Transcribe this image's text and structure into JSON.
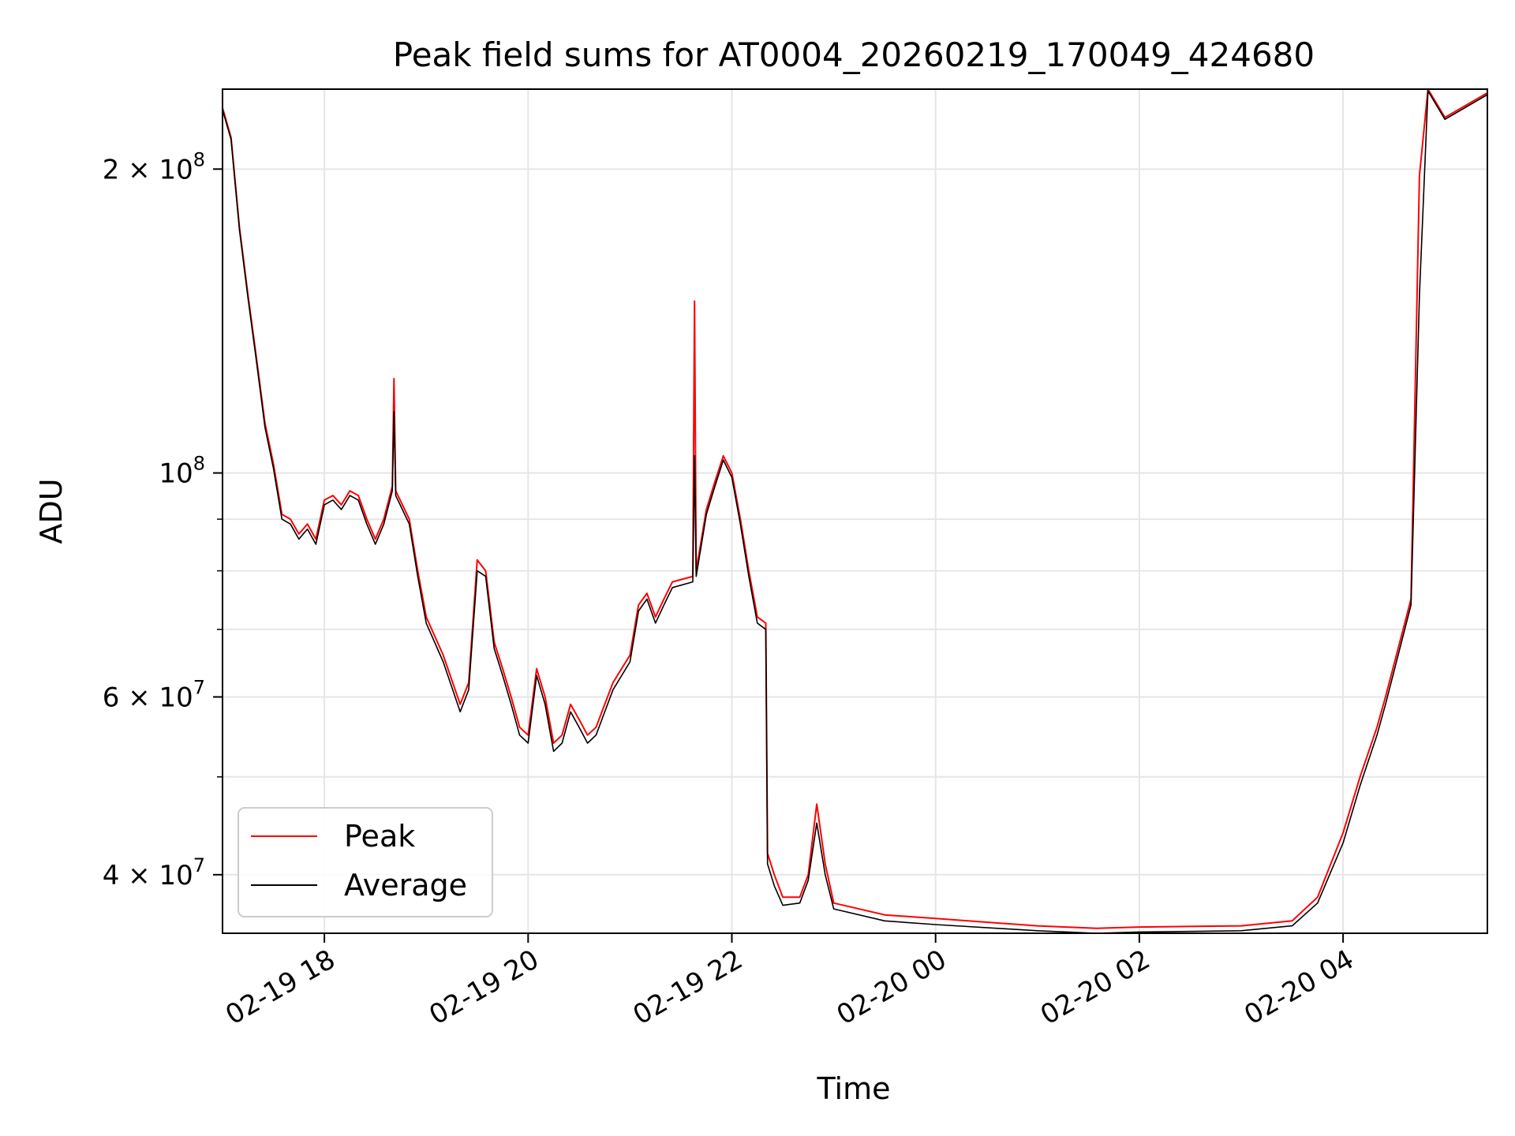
{
  "chart_data": {
    "type": "line",
    "title": "Peak field sums for AT0004_20260219_170049_424680",
    "xlabel": "Time",
    "ylabel": "ADU",
    "yscale": "log",
    "grid": true,
    "legend_position": "lower-left",
    "x_range": [
      "2026-02-19 17:00",
      "2026-02-20 05:25"
    ],
    "y_range": [
      35000000,
      240000000
    ],
    "x_ticks": [
      {
        "value": "2026-02-19 18:00",
        "label": "02-19 18"
      },
      {
        "value": "2026-02-19 20:00",
        "label": "02-19 20"
      },
      {
        "value": "2026-02-19 22:00",
        "label": "02-19 22"
      },
      {
        "value": "2026-02-20 00:00",
        "label": "02-20 00"
      },
      {
        "value": "2026-02-20 02:00",
        "label": "02-20 02"
      },
      {
        "value": "2026-02-20 04:00",
        "label": "02-20 04"
      }
    ],
    "y_ticks": [
      {
        "value": 40000000,
        "label": "4 × 10",
        "exp": "7"
      },
      {
        "value": 60000000,
        "label": "6 × 10",
        "exp": "7"
      },
      {
        "value": 100000000,
        "label": "10",
        "exp": "8"
      },
      {
        "value": 200000000,
        "label": "2 × 10",
        "exp": "8"
      }
    ],
    "y_minor_ticks": [
      50000000,
      70000000,
      80000000,
      90000000
    ],
    "series": [
      {
        "name": "Peak",
        "color": "#ff0000",
        "points": [
          [
            "2026-02-19 17:00",
            230000000
          ],
          [
            "2026-02-19 17:05",
            215000000
          ],
          [
            "2026-02-19 17:10",
            175000000
          ],
          [
            "2026-02-19 17:15",
            150000000
          ],
          [
            "2026-02-19 17:20",
            130000000
          ],
          [
            "2026-02-19 17:25",
            112000000
          ],
          [
            "2026-02-19 17:30",
            102000000
          ],
          [
            "2026-02-19 17:35",
            91000000
          ],
          [
            "2026-02-19 17:40",
            90000000
          ],
          [
            "2026-02-19 17:45",
            87000000
          ],
          [
            "2026-02-19 17:50",
            89000000
          ],
          [
            "2026-02-19 17:55",
            86000000
          ],
          [
            "2026-02-19 18:00",
            94000000
          ],
          [
            "2026-02-19 18:05",
            95000000
          ],
          [
            "2026-02-19 18:10",
            93000000
          ],
          [
            "2026-02-19 18:15",
            96000000
          ],
          [
            "2026-02-19 18:20",
            95000000
          ],
          [
            "2026-02-19 18:25",
            90000000
          ],
          [
            "2026-02-19 18:30",
            86000000
          ],
          [
            "2026-02-19 18:35",
            90000000
          ],
          [
            "2026-02-19 18:40",
            97000000
          ],
          [
            "2026-02-19 18:41",
            124000000
          ],
          [
            "2026-02-19 18:42",
            96000000
          ],
          [
            "2026-02-19 18:50",
            90000000
          ],
          [
            "2026-02-19 18:55",
            80000000
          ],
          [
            "2026-02-19 19:00",
            72000000
          ],
          [
            "2026-02-19 19:10",
            66000000
          ],
          [
            "2026-02-19 19:20",
            59000000
          ],
          [
            "2026-02-19 19:25",
            62000000
          ],
          [
            "2026-02-19 19:30",
            82000000
          ],
          [
            "2026-02-19 19:35",
            80000000
          ],
          [
            "2026-02-19 19:40",
            68000000
          ],
          [
            "2026-02-19 19:45",
            64000000
          ],
          [
            "2026-02-19 19:50",
            60000000
          ],
          [
            "2026-02-19 19:55",
            56000000
          ],
          [
            "2026-02-19 20:00",
            55000000
          ],
          [
            "2026-02-19 20:05",
            64000000
          ],
          [
            "2026-02-19 20:10",
            60000000
          ],
          [
            "2026-02-19 20:15",
            54000000
          ],
          [
            "2026-02-19 20:20",
            55000000
          ],
          [
            "2026-02-19 20:25",
            59000000
          ],
          [
            "2026-02-19 20:30",
            57000000
          ],
          [
            "2026-02-19 20:35",
            55000000
          ],
          [
            "2026-02-19 20:40",
            56000000
          ],
          [
            "2026-02-19 20:50",
            62000000
          ],
          [
            "2026-02-19 21:00",
            66000000
          ],
          [
            "2026-02-19 21:05",
            74000000
          ],
          [
            "2026-02-19 21:10",
            76000000
          ],
          [
            "2026-02-19 21:15",
            72000000
          ],
          [
            "2026-02-19 21:20",
            75000000
          ],
          [
            "2026-02-19 21:25",
            78000000
          ],
          [
            "2026-02-19 21:37",
            79000000
          ],
          [
            "2026-02-19 21:38",
            148000000
          ],
          [
            "2026-02-19 21:39",
            80000000
          ],
          [
            "2026-02-19 21:45",
            92000000
          ],
          [
            "2026-02-19 21:50",
            98000000
          ],
          [
            "2026-02-19 21:55",
            104000000
          ],
          [
            "2026-02-19 22:00",
            100000000
          ],
          [
            "2026-02-19 22:05",
            90000000
          ],
          [
            "2026-02-19 22:10",
            80000000
          ],
          [
            "2026-02-19 22:15",
            72000000
          ],
          [
            "2026-02-19 22:20",
            71000000
          ],
          [
            "2026-02-19 22:21",
            42000000
          ],
          [
            "2026-02-19 22:25",
            40000000
          ],
          [
            "2026-02-19 22:30",
            38000000
          ],
          [
            "2026-02-19 22:40",
            38000000
          ],
          [
            "2026-02-19 22:45",
            40000000
          ],
          [
            "2026-02-19 22:50",
            47000000
          ],
          [
            "2026-02-19 22:55",
            41000000
          ],
          [
            "2026-02-19 23:00",
            37500000
          ],
          [
            "2026-02-19 23:30",
            36500000
          ],
          [
            "2026-02-20 00:00",
            36200000
          ],
          [
            "2026-02-20 01:00",
            35600000
          ],
          [
            "2026-02-20 01:35",
            35400000
          ],
          [
            "2026-02-20 02:00",
            35500000
          ],
          [
            "2026-02-20 03:00",
            35600000
          ],
          [
            "2026-02-20 03:30",
            36000000
          ],
          [
            "2026-02-20 03:45",
            38000000
          ],
          [
            "2026-02-20 04:00",
            44000000
          ],
          [
            "2026-02-20 04:10",
            50000000
          ],
          [
            "2026-02-20 04:20",
            56000000
          ],
          [
            "2026-02-20 04:25",
            60000000
          ],
          [
            "2026-02-20 04:40",
            75000000
          ],
          [
            "2026-02-20 04:45",
            197000000
          ],
          [
            "2026-02-20 04:50",
            240000000
          ],
          [
            "2026-02-20 05:00",
            225000000
          ],
          [
            "2026-02-20 05:25",
            238000000
          ]
        ]
      },
      {
        "name": "Average",
        "color": "#000000",
        "points": [
          [
            "2026-02-19 17:00",
            229000000
          ],
          [
            "2026-02-19 17:05",
            214000000
          ],
          [
            "2026-02-19 17:10",
            174000000
          ],
          [
            "2026-02-19 17:15",
            149000000
          ],
          [
            "2026-02-19 17:20",
            129000000
          ],
          [
            "2026-02-19 17:25",
            111000000
          ],
          [
            "2026-02-19 17:30",
            101000000
          ],
          [
            "2026-02-19 17:35",
            90000000
          ],
          [
            "2026-02-19 17:40",
            89000000
          ],
          [
            "2026-02-19 17:45",
            86000000
          ],
          [
            "2026-02-19 17:50",
            88000000
          ],
          [
            "2026-02-19 17:55",
            85000000
          ],
          [
            "2026-02-19 18:00",
            93000000
          ],
          [
            "2026-02-19 18:05",
            94000000
          ],
          [
            "2026-02-19 18:10",
            92000000
          ],
          [
            "2026-02-19 18:15",
            95000000
          ],
          [
            "2026-02-19 18:20",
            94000000
          ],
          [
            "2026-02-19 18:25",
            89000000
          ],
          [
            "2026-02-19 18:30",
            85000000
          ],
          [
            "2026-02-19 18:35",
            89000000
          ],
          [
            "2026-02-19 18:40",
            96000000
          ],
          [
            "2026-02-19 18:41",
            115000000
          ],
          [
            "2026-02-19 18:42",
            95000000
          ],
          [
            "2026-02-19 18:50",
            89000000
          ],
          [
            "2026-02-19 18:55",
            79000000
          ],
          [
            "2026-02-19 19:00",
            71000000
          ],
          [
            "2026-02-19 19:10",
            65000000
          ],
          [
            "2026-02-19 19:20",
            58000000
          ],
          [
            "2026-02-19 19:25",
            61000000
          ],
          [
            "2026-02-19 19:30",
            80000000
          ],
          [
            "2026-02-19 19:35",
            79000000
          ],
          [
            "2026-02-19 19:40",
            67000000
          ],
          [
            "2026-02-19 19:45",
            63000000
          ],
          [
            "2026-02-19 19:50",
            59000000
          ],
          [
            "2026-02-19 19:55",
            55000000
          ],
          [
            "2026-02-19 20:00",
            54000000
          ],
          [
            "2026-02-19 20:05",
            63000000
          ],
          [
            "2026-02-19 20:10",
            59000000
          ],
          [
            "2026-02-19 20:15",
            53000000
          ],
          [
            "2026-02-19 20:20",
            54000000
          ],
          [
            "2026-02-19 20:25",
            58000000
          ],
          [
            "2026-02-19 20:30",
            56000000
          ],
          [
            "2026-02-19 20:35",
            54000000
          ],
          [
            "2026-02-19 20:40",
            55000000
          ],
          [
            "2026-02-19 20:50",
            61000000
          ],
          [
            "2026-02-19 21:00",
            65000000
          ],
          [
            "2026-02-19 21:05",
            73000000
          ],
          [
            "2026-02-19 21:10",
            75000000
          ],
          [
            "2026-02-19 21:15",
            71000000
          ],
          [
            "2026-02-19 21:20",
            74000000
          ],
          [
            "2026-02-19 21:25",
            77000000
          ],
          [
            "2026-02-19 21:37",
            78000000
          ],
          [
            "2026-02-19 21:38",
            104000000
          ],
          [
            "2026-02-19 21:39",
            79000000
          ],
          [
            "2026-02-19 21:45",
            91000000
          ],
          [
            "2026-02-19 21:50",
            97000000
          ],
          [
            "2026-02-19 21:55",
            103000000
          ],
          [
            "2026-02-19 22:00",
            99000000
          ],
          [
            "2026-02-19 22:05",
            89000000
          ],
          [
            "2026-02-19 22:10",
            79000000
          ],
          [
            "2026-02-19 22:15",
            71000000
          ],
          [
            "2026-02-19 22:20",
            70000000
          ],
          [
            "2026-02-19 22:21",
            41000000
          ],
          [
            "2026-02-19 22:25",
            39000000
          ],
          [
            "2026-02-19 22:30",
            37300000
          ],
          [
            "2026-02-19 22:40",
            37500000
          ],
          [
            "2026-02-19 22:45",
            39500000
          ],
          [
            "2026-02-19 22:50",
            45000000
          ],
          [
            "2026-02-19 22:55",
            40000000
          ],
          [
            "2026-02-19 23:00",
            37000000
          ],
          [
            "2026-02-19 23:30",
            36000000
          ],
          [
            "2026-02-20 00:00",
            35700000
          ],
          [
            "2026-02-20 01:00",
            35200000
          ],
          [
            "2026-02-20 01:35",
            35000000
          ],
          [
            "2026-02-20 02:00",
            35100000
          ],
          [
            "2026-02-20 03:00",
            35200000
          ],
          [
            "2026-02-20 03:30",
            35600000
          ],
          [
            "2026-02-20 03:45",
            37500000
          ],
          [
            "2026-02-20 04:00",
            43000000
          ],
          [
            "2026-02-20 04:10",
            49000000
          ],
          [
            "2026-02-20 04:20",
            55000000
          ],
          [
            "2026-02-20 04:25",
            59000000
          ],
          [
            "2026-02-20 04:40",
            74000000
          ],
          [
            "2026-02-20 04:45",
            150000000
          ],
          [
            "2026-02-20 04:50",
            239000000
          ],
          [
            "2026-02-20 05:00",
            224000000
          ],
          [
            "2026-02-20 05:25",
            237000000
          ]
        ]
      }
    ]
  }
}
